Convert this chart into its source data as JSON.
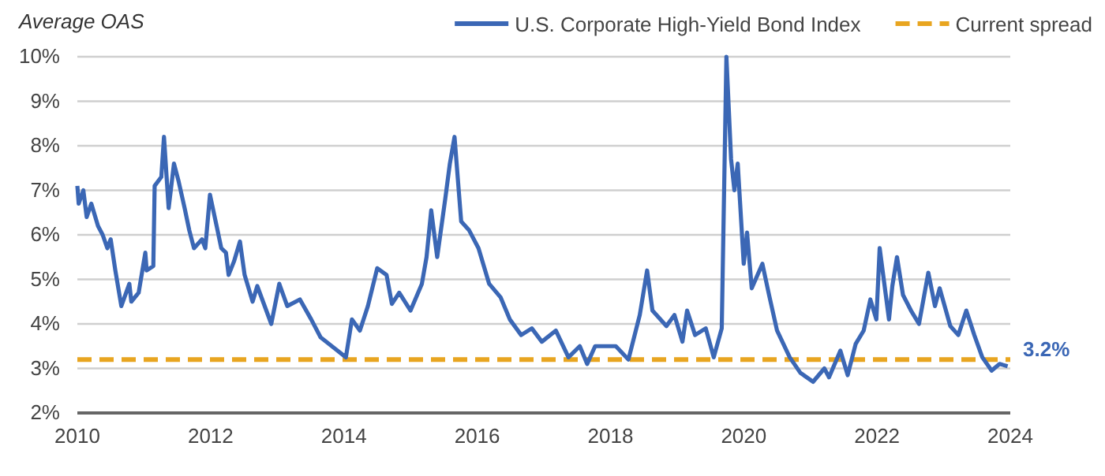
{
  "chart_data": {
    "type": "line",
    "ylabel": "Average OAS",
    "xlim": [
      2010,
      2024
    ],
    "xticks": [
      2010,
      2012,
      2014,
      2016,
      2018,
      2020,
      2022,
      2024
    ],
    "ylim": [
      2,
      10
    ],
    "yticks": [
      {
        "value": 2,
        "label": "2%"
      },
      {
        "value": 3,
        "label": "3%"
      },
      {
        "value": 4,
        "label": "4%"
      },
      {
        "value": 5,
        "label": "5%"
      },
      {
        "value": 6,
        "label": "6%"
      },
      {
        "value": 7,
        "label": "7%"
      },
      {
        "value": 8,
        "label": "8%"
      },
      {
        "value": 9,
        "label": "9%"
      },
      {
        "value": 10,
        "label": "10%"
      }
    ],
    "grid": "y",
    "legend": "top right",
    "marker": "none",
    "series": [
      {
        "name": "U.S. Corporate High-Yield Bond Index",
        "color": "#3b67b5",
        "line_style": "solid",
        "x": [
          2010.0,
          2010.02,
          2010.09,
          2010.14,
          2010.21,
          2010.31,
          2010.38,
          2010.45,
          2010.5,
          2010.57,
          2010.66,
          2010.78,
          2010.81,
          2010.92,
          2011.02,
          2011.04,
          2011.14,
          2011.16,
          2011.26,
          2011.3,
          2011.37,
          2011.45,
          2011.52,
          2011.61,
          2011.68,
          2011.75,
          2011.87,
          2011.92,
          2011.99,
          2012.09,
          2012.16,
          2012.23,
          2012.27,
          2012.35,
          2012.44,
          2012.51,
          2012.63,
          2012.7,
          2012.91,
          2013.03,
          2013.15,
          2013.34,
          2013.51,
          2013.65,
          2013.86,
          2014.03,
          2014.12,
          2014.24,
          2014.36,
          2014.5,
          2014.64,
          2014.72,
          2014.83,
          2015.0,
          2015.17,
          2015.24,
          2015.31,
          2015.4,
          2015.52,
          2015.59,
          2015.66,
          2015.76,
          2015.88,
          2016.02,
          2016.18,
          2016.35,
          2016.49,
          2016.66,
          2016.82,
          2016.97,
          2017.18,
          2017.37,
          2017.54,
          2017.65,
          2017.77,
          2018.08,
          2018.27,
          2018.44,
          2018.55,
          2018.63,
          2018.84,
          2018.96,
          2019.08,
          2019.15,
          2019.27,
          2019.43,
          2019.55,
          2019.67,
          2019.74,
          2019.81,
          2019.86,
          2019.91,
          2020.0,
          2020.05,
          2020.12,
          2020.28,
          2020.38,
          2020.5,
          2020.69,
          2020.85,
          2021.04,
          2021.21,
          2021.28,
          2021.45,
          2021.56,
          2021.68,
          2021.8,
          2021.9,
          2021.99,
          2022.04,
          2022.18,
          2022.23,
          2022.3,
          2022.39,
          2022.51,
          2022.63,
          2022.77,
          2022.87,
          2022.94,
          2023.1,
          2023.22,
          2023.34,
          2023.46,
          2023.58,
          2023.72,
          2023.84,
          2023.96
        ],
        "values": [
          7.1,
          6.7,
          7.0,
          6.4,
          6.7,
          6.2,
          6.0,
          5.7,
          5.9,
          5.2,
          4.4,
          4.9,
          4.5,
          4.7,
          5.6,
          5.2,
          5.3,
          7.1,
          7.3,
          8.2,
          6.6,
          7.6,
          7.2,
          6.6,
          6.1,
          5.7,
          5.9,
          5.7,
          6.9,
          6.2,
          5.7,
          5.6,
          5.1,
          5.4,
          5.85,
          5.1,
          4.5,
          4.85,
          4.0,
          4.9,
          4.4,
          4.55,
          4.1,
          3.7,
          3.45,
          3.25,
          4.1,
          3.85,
          4.4,
          5.25,
          5.1,
          4.45,
          4.7,
          4.3,
          4.9,
          5.5,
          6.55,
          5.5,
          6.8,
          7.6,
          8.2,
          6.3,
          6.1,
          5.7,
          4.9,
          4.6,
          4.1,
          3.75,
          3.9,
          3.6,
          3.85,
          3.25,
          3.5,
          3.1,
          3.5,
          3.5,
          3.2,
          4.2,
          5.2,
          4.3,
          3.95,
          4.2,
          3.6,
          4.3,
          3.75,
          3.9,
          3.25,
          3.9,
          10.0,
          7.7,
          7.0,
          7.6,
          5.35,
          6.05,
          4.8,
          5.35,
          4.65,
          3.85,
          3.25,
          2.9,
          2.7,
          3.0,
          2.8,
          3.4,
          2.85,
          3.55,
          3.85,
          4.55,
          4.1,
          5.7,
          4.1,
          4.85,
          5.5,
          4.65,
          4.3,
          4.0,
          5.15,
          4.4,
          4.8,
          3.95,
          3.75,
          4.3,
          3.75,
          3.25,
          2.95,
          3.1,
          3.05
        ]
      },
      {
        "name": "Current spread",
        "color": "#e8a520",
        "line_style": "dashed",
        "x": [
          2010,
          2024
        ],
        "values": [
          3.2,
          3.2
        ]
      }
    ],
    "annotations": [
      {
        "text": "3.2%",
        "x": 2024,
        "y": 3.2
      }
    ]
  }
}
